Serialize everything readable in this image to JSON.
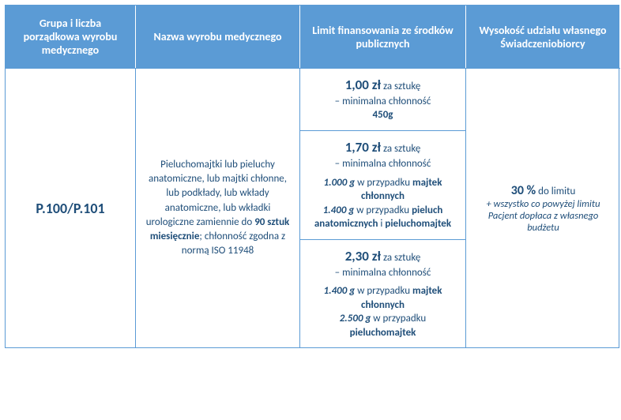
{
  "headers": {
    "c1": "Grupa i liczba porządkowa wyrobu medycznego",
    "c2": "Nazwa wyrobu medycznego",
    "c3": "Limit finansowania ze środków publicznych",
    "c4": "Wysokość udziału własnego Świadczeniobiorcy"
  },
  "row": {
    "code": "P.100/P.101",
    "desc_pre": "Pieluchomajtki lub pieluchy anatomiczne, lub majtki chłonne, lub podkłady, lub wkłady anatomiczne, lub wkładki urologiczne zamiennie do ",
    "desc_bold": "90 sztuk miesięcznie",
    "desc_post": "; chłonność zgodna z normą ISO 11948",
    "limits": [
      {
        "price": "1,00 zł",
        "unit": " za sztukę",
        "line2": "– minimalna chłonność",
        "line3_bold": "450g"
      },
      {
        "price": "1,70 zł",
        "unit": " za sztukę",
        "line2": "– minimalna chłonność",
        "d1_g": "1.000 g",
        "d1_txt": " w przypadku ",
        "d1_b": "majtek chłonnych",
        "d2_g": "1.400 g",
        "d2_txt": " w przypadku ",
        "d2_b1": "pieluch anatomicznych",
        "d2_mid": " i ",
        "d2_b2": "pieluchomajtek"
      },
      {
        "price": "2,30 zł",
        "unit": " za sztukę",
        "line2": "– minimalna chłonność",
        "d1_g": "1.400 g",
        "d1_txt": " w przypadku ",
        "d1_b": "majtek chłonnych",
        "d2_g": "2.500 g",
        "d2_txt": " w przypadku ",
        "d2_b": "pieluchomajtek"
      }
    ],
    "share_perc": "30 %",
    "share_suffix": " do limitu",
    "share_note": "+ wszystko co powyżej limitu Pacjent dopłaca z własnego budżetu"
  },
  "colors": {
    "header_bg": "#5b9bd5",
    "header_fg": "#ffffff",
    "border": "#5b9bd5",
    "text": "#1f4e79"
  }
}
